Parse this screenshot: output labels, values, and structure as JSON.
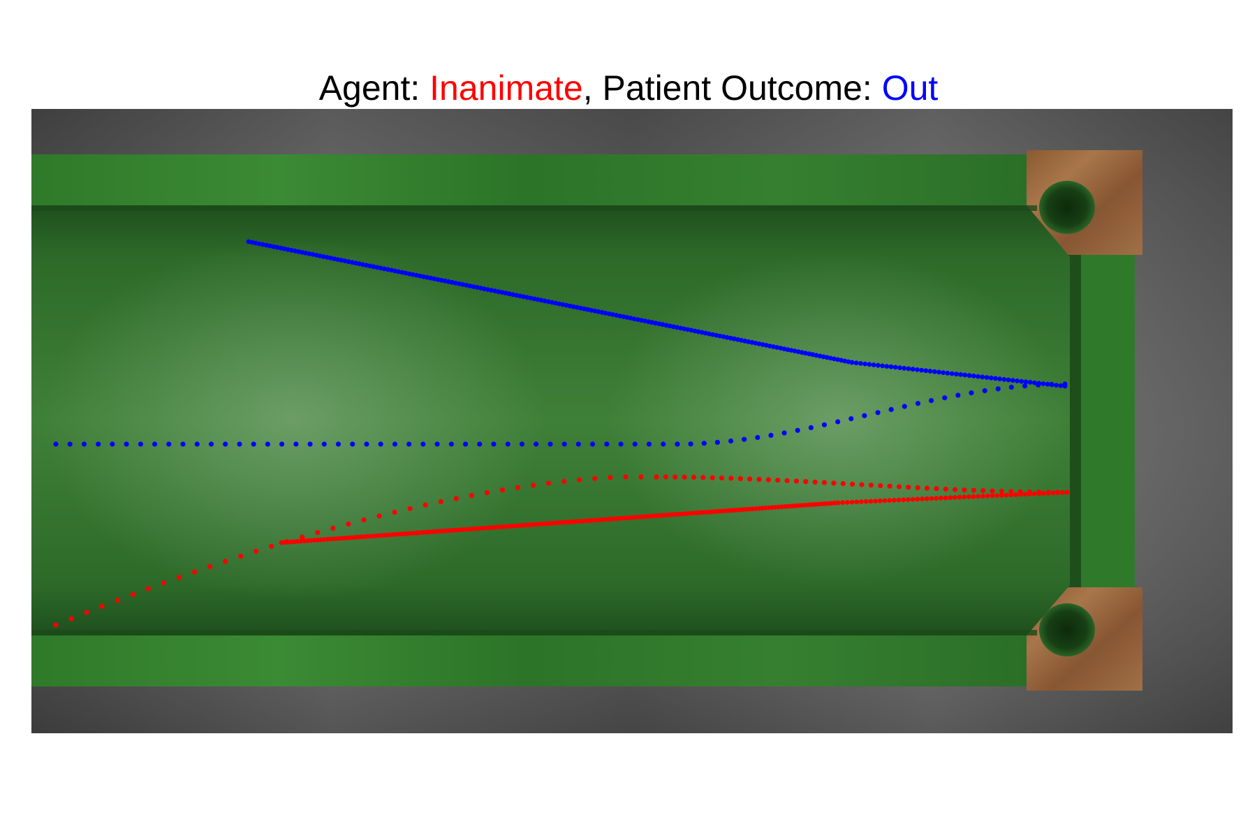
{
  "title": {
    "agent_prefix": "Agent: ",
    "agent_value": "Inanimate",
    "separator": ", Patient Outcome: ",
    "outcome_value": "Out",
    "agent_color": "#ff0000",
    "outcome_color": "#0000ff"
  },
  "colors": {
    "agent_path": "#ff0000",
    "patient_path": "#0000ff",
    "felt": "#2f7a2a",
    "rail": "#337d2d",
    "wood": "#9a6a3e",
    "floor": "#5a5a5a"
  },
  "chart_data": {
    "type": "scatter",
    "title": "Agent: Inanimate, Patient Outcome: Out",
    "series": [
      {
        "role": "patient",
        "color": "#0000ff",
        "segments": [
          {
            "style": "sparse",
            "from": [
              80,
              636
            ],
            "to": [
              970,
              636
            ],
            "count": 45,
            "curve": "straight"
          },
          {
            "style": "sparse",
            "from": [
              970,
              636
            ],
            "to": [
              1525,
              550
            ],
            "count": 30,
            "curve": "ease"
          },
          {
            "style": "dense",
            "from": [
              1525,
              553
            ],
            "to": [
              1220,
              519
            ],
            "count": 50,
            "curve": "straight"
          },
          {
            "style": "dense",
            "from": [
              1220,
              519
            ],
            "to": [
              356,
              346
            ],
            "count": 170,
            "curve": "straight"
          }
        ]
      },
      {
        "role": "agent",
        "color": "#ff0000",
        "segments": [
          {
            "style": "sparse",
            "from": [
              80,
              895
            ],
            "to": [
              940,
              683
            ],
            "count": 40,
            "curve": "curvedTop"
          },
          {
            "style": "sparse",
            "from": [
              940,
              683
            ],
            "to": [
              1528,
              705
            ],
            "count": 45,
            "curve": "ease"
          },
          {
            "style": "dense",
            "from": [
              1528,
              705
            ],
            "to": [
              1200,
              720
            ],
            "count": 50,
            "curve": "straight"
          },
          {
            "style": "dense",
            "from": [
              1200,
              720
            ],
            "to": [
              403,
              777
            ],
            "count": 170,
            "curve": "straight"
          }
        ]
      }
    ]
  }
}
